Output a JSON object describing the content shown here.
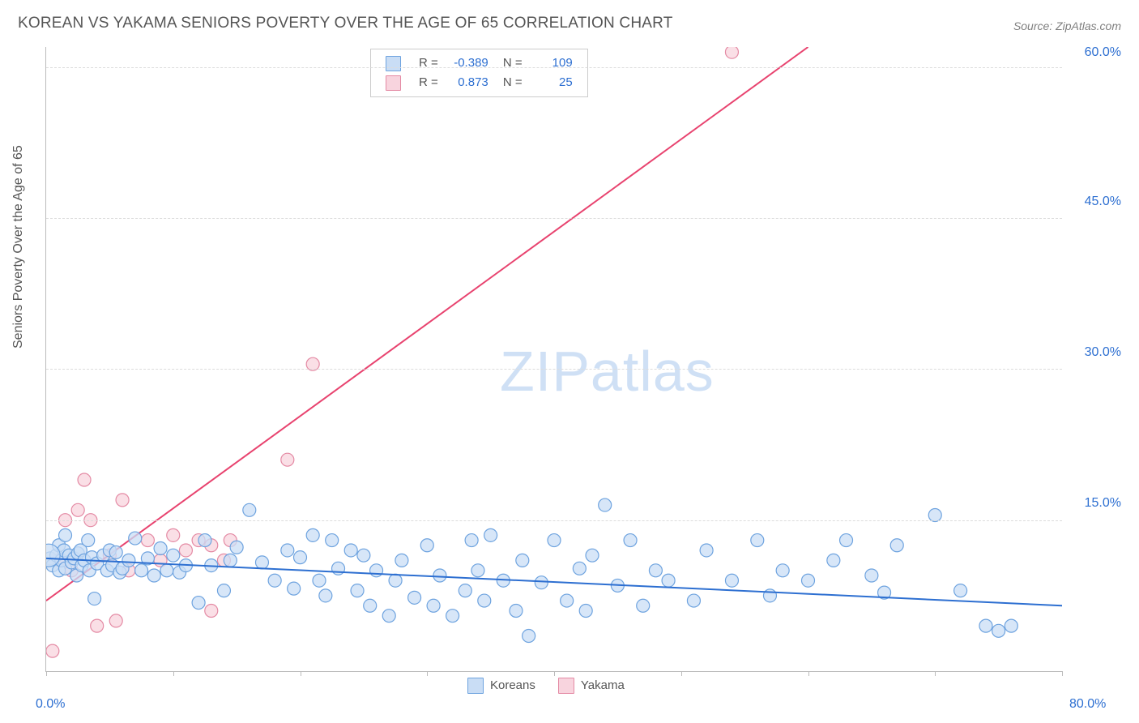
{
  "title": "KOREAN VS YAKAMA SENIORS POVERTY OVER THE AGE OF 65 CORRELATION CHART",
  "source_label": "Source: ZipAtlas.com",
  "ylabel": "Seniors Poverty Over the Age of 65",
  "watermark_strong": "ZIP",
  "watermark_light": "atlas",
  "chart": {
    "type": "scatter",
    "background_color": "#ffffff",
    "grid_color": "#dcdcdc",
    "axis_line_color": "#bbbbbb",
    "label_fontsize": 16,
    "title_fontsize": 19,
    "title_color": "#555555",
    "value_color": "#2d6fd1",
    "xlim": [
      0,
      80
    ],
    "ylim": [
      0,
      62
    ],
    "x_ticks_at": [
      0,
      10,
      20,
      30,
      40,
      50,
      60,
      70,
      80
    ],
    "x_tick_labels": {
      "0": "0.0%",
      "80": "80.0%"
    },
    "y_gridlines": [
      15,
      30,
      45,
      60
    ],
    "y_tick_labels": [
      "15.0%",
      "30.0%",
      "45.0%",
      "60.0%"
    ],
    "marker_radius": 8,
    "marker_stroke_width": 1.2,
    "trend_line_width": 2
  },
  "legend": {
    "series1": {
      "label": "Koreans",
      "fill": "#c9ddf5",
      "stroke": "#6ea3df"
    },
    "series2": {
      "label": "Yakama",
      "fill": "#f8d4de",
      "stroke": "#e48aa4"
    }
  },
  "stats": {
    "series1": {
      "R": "-0.389",
      "N": "109",
      "fill": "#c9ddf5",
      "stroke": "#6ea3df"
    },
    "series2": {
      "R": "0.873",
      "N": "25",
      "fill": "#f8d4de",
      "stroke": "#e48aa4"
    }
  },
  "series": {
    "koreans": {
      "fill": "#c9ddf5",
      "stroke": "#6ea3df",
      "trend_color": "#2d6fd1",
      "trend": {
        "x1": 0,
        "y1": 11.2,
        "x2": 80,
        "y2": 6.5
      },
      "points": [
        [
          0.3,
          11.2
        ],
        [
          0.5,
          10.5
        ],
        [
          0.8,
          11.5
        ],
        [
          1.0,
          12.5
        ],
        [
          1.0,
          10.0
        ],
        [
          1.2,
          11.0
        ],
        [
          1.4,
          12.0
        ],
        [
          1.5,
          10.2
        ],
        [
          1.8,
          11.5
        ],
        [
          1.5,
          13.5
        ],
        [
          2.0,
          10.8
        ],
        [
          2.2,
          11.2
        ],
        [
          2.4,
          9.5
        ],
        [
          2.5,
          11.7
        ],
        [
          2.7,
          12.0
        ],
        [
          2.8,
          10.5
        ],
        [
          3.0,
          11.0
        ],
        [
          3.3,
          13.0
        ],
        [
          3.4,
          10.0
        ],
        [
          3.6,
          11.3
        ],
        [
          3.8,
          7.2
        ],
        [
          4.0,
          10.7
        ],
        [
          4.5,
          11.5
        ],
        [
          4.8,
          10.0
        ],
        [
          5.0,
          12.0
        ],
        [
          5.2,
          10.5
        ],
        [
          5.5,
          11.8
        ],
        [
          5.8,
          9.8
        ],
        [
          6.0,
          10.2
        ],
        [
          6.5,
          11.0
        ],
        [
          7.0,
          13.2
        ],
        [
          7.5,
          10.0
        ],
        [
          8.0,
          11.2
        ],
        [
          8.5,
          9.5
        ],
        [
          9.0,
          12.2
        ],
        [
          9.5,
          10.0
        ],
        [
          10.0,
          11.5
        ],
        [
          10.5,
          9.8
        ],
        [
          11.0,
          10.5
        ],
        [
          12.0,
          6.8
        ],
        [
          12.5,
          13.0
        ],
        [
          13.0,
          10.5
        ],
        [
          14.0,
          8.0
        ],
        [
          14.5,
          11.0
        ],
        [
          15.0,
          12.3
        ],
        [
          16.0,
          16.0
        ],
        [
          17.0,
          10.8
        ],
        [
          18.0,
          9.0
        ],
        [
          19.0,
          12.0
        ],
        [
          19.5,
          8.2
        ],
        [
          20.0,
          11.3
        ],
        [
          21.0,
          13.5
        ],
        [
          21.5,
          9.0
        ],
        [
          22.0,
          7.5
        ],
        [
          22.5,
          13.0
        ],
        [
          23.0,
          10.2
        ],
        [
          24.0,
          12.0
        ],
        [
          24.5,
          8.0
        ],
        [
          25.0,
          11.5
        ],
        [
          25.5,
          6.5
        ],
        [
          26.0,
          10.0
        ],
        [
          27.0,
          5.5
        ],
        [
          27.5,
          9.0
        ],
        [
          28.0,
          11.0
        ],
        [
          29.0,
          7.3
        ],
        [
          30.0,
          12.5
        ],
        [
          30.5,
          6.5
        ],
        [
          31.0,
          9.5
        ],
        [
          32.0,
          5.5
        ],
        [
          33.0,
          8.0
        ],
        [
          33.5,
          13.0
        ],
        [
          34.0,
          10.0
        ],
        [
          34.5,
          7.0
        ],
        [
          35.0,
          13.5
        ],
        [
          36.0,
          9.0
        ],
        [
          37.0,
          6.0
        ],
        [
          37.5,
          11.0
        ],
        [
          38.0,
          3.5
        ],
        [
          39.0,
          8.8
        ],
        [
          40.0,
          13.0
        ],
        [
          41.0,
          7.0
        ],
        [
          42.0,
          10.2
        ],
        [
          42.5,
          6.0
        ],
        [
          43.0,
          11.5
        ],
        [
          44.0,
          16.5
        ],
        [
          45.0,
          8.5
        ],
        [
          46.0,
          13.0
        ],
        [
          47.0,
          6.5
        ],
        [
          48.0,
          10.0
        ],
        [
          49.0,
          9.0
        ],
        [
          51.0,
          7.0
        ],
        [
          52.0,
          12.0
        ],
        [
          54.0,
          9.0
        ],
        [
          56.0,
          13.0
        ],
        [
          57.0,
          7.5
        ],
        [
          58.0,
          10.0
        ],
        [
          60.0,
          9.0
        ],
        [
          62.0,
          11.0
        ],
        [
          63.0,
          13.0
        ],
        [
          65.0,
          9.5
        ],
        [
          66.0,
          7.8
        ],
        [
          67.0,
          12.5
        ],
        [
          70.0,
          15.5
        ],
        [
          72.0,
          8.0
        ],
        [
          74.0,
          4.5
        ],
        [
          75.0,
          4.0
        ],
        [
          76.0,
          4.5
        ]
      ],
      "big_point": {
        "x": 0.2,
        "y": 11.5,
        "r": 14
      }
    },
    "yakama": {
      "fill": "#f8d4de",
      "stroke": "#e48aa4",
      "trend_color": "#e8436f",
      "trend": {
        "x1": 0,
        "y1": 7.0,
        "x2": 60,
        "y2": 62.0
      },
      "points": [
        [
          0.5,
          2.0
        ],
        [
          1.0,
          11.0
        ],
        [
          1.5,
          15.0
        ],
        [
          2.0,
          10.0
        ],
        [
          2.5,
          16.0
        ],
        [
          3.0,
          19.0
        ],
        [
          3.5,
          15.0
        ],
        [
          4.0,
          4.5
        ],
        [
          5.0,
          11.5
        ],
        [
          5.5,
          5.0
        ],
        [
          6.0,
          17.0
        ],
        [
          6.5,
          10.0
        ],
        [
          8.0,
          13.0
        ],
        [
          9.0,
          11.0
        ],
        [
          10.0,
          13.5
        ],
        [
          11.0,
          12.0
        ],
        [
          12.0,
          13.0
        ],
        [
          13.0,
          12.5
        ],
        [
          13.0,
          6.0
        ],
        [
          14.0,
          11.0
        ],
        [
          14.5,
          13.0
        ],
        [
          19.0,
          21.0
        ],
        [
          21.0,
          30.5
        ],
        [
          54.0,
          61.5
        ]
      ]
    }
  }
}
